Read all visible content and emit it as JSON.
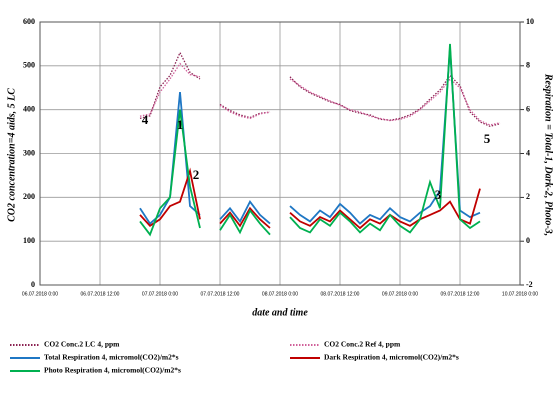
{
  "chart_data": {
    "type": "line",
    "x_label": "date and time",
    "y_label": "CO2 concentration=4 aids, 5 LC",
    "y2_label": "Respiration = Total-1, Dark-2, Photo-3,",
    "xlim": [
      "06.07.2018 0:00",
      "10.07.2018 0:00"
    ],
    "xticks": [
      "06.07.2018 0:00",
      "06.07.2018 12:00",
      "07.07.2018 0:00",
      "07.07.2018 12:00",
      "08.07.2018 0:00",
      "08.07.2018 12:00",
      "09.07.2018 0:00",
      "09.07.2018 12:00",
      "10.07.2018 0:00"
    ],
    "ylim": [
      0,
      600
    ],
    "yticks": [
      0,
      100,
      200,
      300,
      400,
      500,
      600
    ],
    "y2lim": [
      -2,
      10
    ],
    "y2ticks": [
      -2,
      0,
      2,
      4,
      6,
      8,
      10
    ],
    "grid": true,
    "annotations": [
      "4",
      "1",
      "2",
      "3",
      "5"
    ],
    "x": [
      "06.07.2018 20:00",
      "06.07.2018 22:00",
      "07.07.2018 0:00",
      "07.07.2018 2:00",
      "07.07.2018 4:00",
      "07.07.2018 6:00",
      "07.07.2018 8:00",
      "07.07.2018 10:00",
      "07.07.2018 12:00",
      "07.07.2018 14:00",
      "07.07.2018 16:00",
      "07.07.2018 18:00",
      "07.07.2018 20:00",
      "07.07.2018 22:00",
      "08.07.2018 0:00",
      "08.07.2018 2:00",
      "08.07.2018 4:00",
      "08.07.2018 6:00",
      "08.07.2018 8:00",
      "08.07.2018 10:00",
      "08.07.2018 12:00",
      "08.07.2018 14:00",
      "08.07.2018 16:00",
      "08.07.2018 18:00",
      "08.07.2018 20:00",
      "08.07.2018 22:00",
      "09.07.2018 0:00",
      "09.07.2018 2:00",
      "09.07.2018 4:00",
      "09.07.2018 6:00",
      "09.07.2018 8:00",
      "09.07.2018 10:00",
      "09.07.2018 12:00",
      "09.07.2018 14:00",
      "09.07.2018 16:00",
      "09.07.2018 18:00",
      "09.07.2018 20:00"
    ],
    "series": [
      {
        "name": "CO2 Conc.2 LC 4, ppm",
        "color": "#8b2252",
        "style": "dotted",
        "values": [
          380,
          386,
          452,
          478,
          530,
          485,
          470,
          null,
          412,
          398,
          388,
          382,
          392,
          394,
          null,
          475,
          452,
          438,
          428,
          418,
          412,
          398,
          392,
          388,
          378,
          376,
          380,
          388,
          402,
          424,
          445,
          478,
          455,
          395,
          372,
          362,
          368
        ]
      },
      {
        "name": "CO2 Conc.2 Ref 4, ppm",
        "color": "#d0609a",
        "style": "dotted",
        "values": [
          385,
          390,
          440,
          470,
          505,
          480,
          475,
          null,
          410,
          395,
          385,
          380,
          390,
          395,
          null,
          470,
          455,
          440,
          430,
          420,
          410,
          400,
          395,
          385,
          380,
          375,
          378,
          385,
          400,
          420,
          440,
          470,
          450,
          400,
          375,
          365,
          370
        ]
      },
      {
        "name": "Total Respiration 4, micromol(CO2)/m2*s",
        "color": "#1f77c4",
        "style": "solid",
        "axis": "y2",
        "values": [
          1.5,
          0.8,
          1.2,
          2.0,
          6.8,
          1.6,
          1.2,
          null,
          1.0,
          1.5,
          0.9,
          1.8,
          1.2,
          0.8,
          null,
          1.6,
          1.2,
          0.9,
          1.4,
          1.1,
          1.7,
          1.3,
          0.8,
          1.2,
          1.0,
          1.5,
          1.1,
          0.9,
          1.3,
          1.6,
          2.3,
          8.8,
          1.4,
          1.1,
          1.3,
          null,
          null
        ]
      },
      {
        "name": "Dark Respiration 4, micromol(CO2)/m2*s",
        "color": "#c00000",
        "style": "solid",
        "axis": "y2",
        "values": [
          1.2,
          0.7,
          1.0,
          1.6,
          1.8,
          3.2,
          1.0,
          null,
          0.8,
          1.3,
          0.7,
          1.5,
          1.0,
          0.6,
          null,
          1.3,
          0.9,
          0.7,
          1.1,
          0.9,
          1.4,
          1.0,
          0.6,
          1.0,
          0.8,
          1.2,
          0.9,
          0.7,
          1.0,
          1.2,
          1.4,
          1.8,
          1.0,
          0.8,
          2.4,
          null,
          null
        ]
      },
      {
        "name": "Photo Respiration 4, micromol(CO2)/m2*s",
        "color": "#00b050",
        "style": "solid",
        "axis": "y2",
        "values": [
          0.9,
          0.3,
          1.5,
          2.0,
          6.0,
          2.5,
          0.6,
          null,
          0.5,
          1.2,
          0.4,
          1.4,
          0.8,
          0.3,
          null,
          1.1,
          0.6,
          0.4,
          1.0,
          0.7,
          1.3,
          0.9,
          0.4,
          0.8,
          0.5,
          1.2,
          0.7,
          0.4,
          1.0,
          2.7,
          1.5,
          9.0,
          1.0,
          0.6,
          0.9,
          null,
          null
        ]
      }
    ]
  }
}
